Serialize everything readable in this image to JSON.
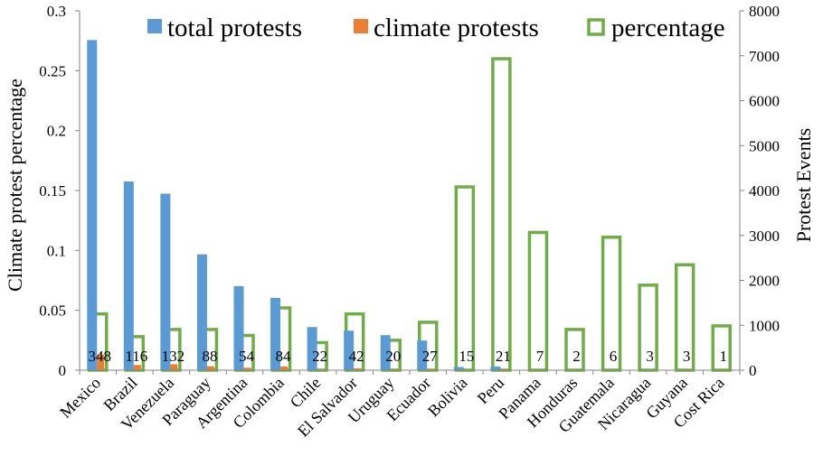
{
  "chart_data": {
    "type": "bar",
    "categories": [
      "Mexico",
      "Brazil",
      "Venezuela",
      "Paraguay",
      "Argentina",
      "Colombia",
      "Chile",
      "El Salvador",
      "Uruguay",
      "Ecuador",
      "Bolivia",
      "Peru",
      "Panama",
      "Honduras",
      "Guatemala",
      "Nicaragua",
      "Guyana",
      "Cost Rica"
    ],
    "series": [
      {
        "name": "total protests",
        "axis": "right",
        "color": "#5b9bd5",
        "values": [
          7350,
          4200,
          3930,
          2580,
          1870,
          1610,
          960,
          880,
          780,
          660,
          70,
          80,
          0,
          0,
          0,
          0,
          0,
          0
        ]
      },
      {
        "name": "climate protests",
        "axis": "right",
        "color": "#ed7d31",
        "values": [
          348,
          116,
          132,
          88,
          54,
          84,
          22,
          42,
          20,
          27,
          15,
          21,
          7,
          2,
          6,
          3,
          3,
          1
        ]
      },
      {
        "name": "percentage",
        "axis": "left",
        "color": "#70ad47",
        "values": [
          0.047,
          0.028,
          0.034,
          0.034,
          0.029,
          0.052,
          0.023,
          0.047,
          0.025,
          0.04,
          0.153,
          0.26,
          0.115,
          0.034,
          0.111,
          0.071,
          0.088,
          0.037
        ]
      }
    ],
    "data_labels": [
      "348",
      "116",
      "132",
      "88",
      "54",
      "84",
      "22",
      "42",
      "20",
      "27",
      "15",
      "21",
      "7",
      "2",
      "6",
      "3",
      "3",
      "1"
    ],
    "y_left": {
      "label": "Climate protest percentage",
      "ticks": [
        "0",
        "0.05",
        "0.1",
        "0.15",
        "0.2",
        "0.25",
        "0.3"
      ],
      "range": [
        0,
        0.3
      ]
    },
    "y_right": {
      "label": "Protest Events",
      "ticks": [
        "0",
        "1000",
        "2000",
        "3000",
        "4000",
        "5000",
        "6000",
        "7000",
        "8000"
      ],
      "range": [
        0,
        8000
      ]
    },
    "legend": {
      "position": "top",
      "items": [
        "total protests",
        "climate protests",
        "percentage"
      ]
    },
    "grid": false
  }
}
